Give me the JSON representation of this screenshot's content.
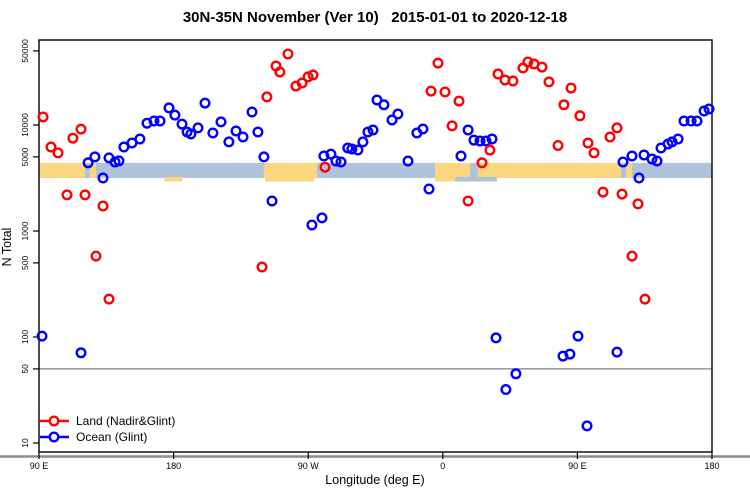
{
  "chart_data": {
    "type": "scatter",
    "title": "30N-35N November (Ver 10)   2015-01-01 to 2020-12-18",
    "xlabel": "Longitude (deg E)",
    "ylabel": "N Total",
    "x_axis": {
      "range": [
        0,
        450
      ],
      "unit_note": "degrees eastward from 90E; axis labels wrap around the globe",
      "ticks": [
        {
          "pos": 0,
          "label": "90 E"
        },
        {
          "pos": 90,
          "label": "180"
        },
        {
          "pos": 180,
          "label": "90 W"
        },
        {
          "pos": 270,
          "label": "0"
        },
        {
          "pos": 360,
          "label": "90 E"
        },
        {
          "pos": 450,
          "label": "180"
        }
      ]
    },
    "y_axis": {
      "scale": "log10",
      "range": [
        7.7,
        63000
      ],
      "ticks": [
        {
          "value": 50000,
          "label": "50000"
        },
        {
          "value": 10000,
          "label": "10000"
        },
        {
          "value": 5000,
          "label": "5000"
        },
        {
          "value": 1000,
          "label": "1000"
        },
        {
          "value": 500,
          "label": "500"
        },
        {
          "value": 100,
          "label": "100"
        },
        {
          "value": 50,
          "label": "50"
        },
        {
          "value": 10,
          "label": "10"
        }
      ]
    },
    "reference_line": {
      "value": 50,
      "color": "#808080"
    },
    "baseline_rule_color": "#8c8c8c",
    "surface_band": {
      "value_top": 4390,
      "value_bottom": 3160,
      "land_color": "#FAD77E",
      "ocean_color": "#AFC3DC",
      "segments": [
        {
          "from": 0,
          "to": 30.8,
          "type": "land"
        },
        {
          "from": 30.8,
          "to": 34.1,
          "type": "ocean"
        },
        {
          "from": 34.1,
          "to": 38.1,
          "type": "land"
        },
        {
          "from": 38.1,
          "to": 150.4,
          "type": "ocean"
        },
        {
          "from": 150.4,
          "to": 185.9,
          "type": "land"
        },
        {
          "from": 185.9,
          "to": 264.8,
          "type": "ocean"
        },
        {
          "from": 264.8,
          "to": 288.2,
          "type": "land"
        },
        {
          "from": 288.2,
          "to": 293.5,
          "type": "ocean"
        },
        {
          "from": 293.5,
          "to": 389.2,
          "type": "land"
        },
        {
          "from": 389.2,
          "to": 392.5,
          "type": "ocean"
        },
        {
          "from": 392.5,
          "to": 396.5,
          "type": "land"
        },
        {
          "from": 396.5,
          "to": 450,
          "type": "ocean"
        }
      ],
      "fringes": [
        {
          "from": 84,
          "to": 96,
          "type": "land"
        },
        {
          "from": 151,
          "to": 184,
          "type": "land"
        },
        {
          "from": 264.8,
          "to": 278.2,
          "type": "land"
        },
        {
          "from": 278.2,
          "to": 306.2,
          "type": "ocean"
        }
      ]
    },
    "series": [
      {
        "name": "Land (Nadir&Glint)",
        "color": "#FF0000",
        "points": [
          [
            2.7,
            11900
          ],
          [
            8,
            6200
          ],
          [
            12.7,
            5450
          ],
          [
            22.7,
            7500
          ],
          [
            28.1,
            9150
          ],
          [
            18.7,
            2190
          ],
          [
            30.8,
            2190
          ],
          [
            42.8,
            1720
          ],
          [
            38.1,
            580
          ],
          [
            46.8,
            228
          ],
          [
            149.1,
            457
          ],
          [
            152.4,
            18400
          ],
          [
            158.5,
            36000
          ],
          [
            161.1,
            31600
          ],
          [
            166.5,
            46800
          ],
          [
            171.8,
            23300
          ],
          [
            175.9,
            24900
          ],
          [
            179.9,
            28400
          ],
          [
            183.2,
            29600
          ],
          [
            191.2,
            4000
          ],
          [
            262.1,
            20900
          ],
          [
            266.8,
            38400
          ],
          [
            271.5,
            20500
          ],
          [
            280.8,
            16800
          ],
          [
            276.2,
            9800
          ],
          [
            301.5,
            5800
          ],
          [
            296.2,
            4400
          ],
          [
            286.9,
            1920
          ],
          [
            306.9,
            30300
          ],
          [
            311.6,
            26600
          ],
          [
            316.9,
            26000
          ],
          [
            323.6,
            34500
          ],
          [
            326.9,
            39300
          ],
          [
            331,
            37600
          ],
          [
            336.3,
            35200
          ],
          [
            341,
            25500
          ],
          [
            347,
            6400
          ],
          [
            351,
            15500
          ],
          [
            355.7,
            22300
          ],
          [
            361.7,
            12200
          ],
          [
            367.1,
            6760
          ],
          [
            371.1,
            5450
          ],
          [
            377.1,
            2330
          ],
          [
            381.8,
            7710
          ],
          [
            386.5,
            9380
          ],
          [
            389.8,
            2230
          ],
          [
            400.5,
            1800
          ],
          [
            396.5,
            580
          ],
          [
            405.2,
            228
          ]
        ]
      },
      {
        "name": "Ocean (Glint)",
        "color": "#0000FF",
        "points": [
          [
            2,
            102
          ],
          [
            28.1,
            71
          ],
          [
            32.8,
            4400
          ],
          [
            37.4,
            5000
          ],
          [
            42.8,
            3160
          ],
          [
            46.8,
            4890
          ],
          [
            50.8,
            4480
          ],
          [
            53.5,
            4580
          ],
          [
            56.8,
            6200
          ],
          [
            62.2,
            6760
          ],
          [
            67.5,
            7380
          ],
          [
            72.2,
            10400
          ],
          [
            76.9,
            10900
          ],
          [
            80.9,
            10900
          ],
          [
            86.9,
            14500
          ],
          [
            90.9,
            12400
          ],
          [
            95.6,
            10200
          ],
          [
            99,
            8590
          ],
          [
            101.6,
            8220
          ],
          [
            106.3,
            9380
          ],
          [
            111,
            16100
          ],
          [
            116.3,
            8410
          ],
          [
            121.7,
            10700
          ],
          [
            127,
            6920
          ],
          [
            131.7,
            8770
          ],
          [
            136.4,
            7710
          ],
          [
            142.4,
            13270
          ],
          [
            146.4,
            8590
          ],
          [
            150.4,
            5000
          ],
          [
            155.8,
            1920
          ],
          [
            182.5,
            1140
          ],
          [
            189.2,
            1330
          ],
          [
            190.5,
            5100
          ],
          [
            195.2,
            5320
          ],
          [
            198.5,
            4570
          ],
          [
            201.9,
            4480
          ],
          [
            206.5,
            6070
          ],
          [
            209.2,
            5940
          ],
          [
            213.2,
            5810
          ],
          [
            216.6,
            6920
          ],
          [
            219.9,
            8590
          ],
          [
            223.3,
            8970
          ],
          [
            226,
            17200
          ],
          [
            230.6,
            15500
          ],
          [
            240,
            12700
          ],
          [
            236,
            11140
          ],
          [
            252.7,
            8410
          ],
          [
            256.7,
            9160
          ],
          [
            246.7,
            4570
          ],
          [
            260.8,
            2490
          ],
          [
            282.2,
            5100
          ],
          [
            286.9,
            8970
          ],
          [
            290.8,
            7210
          ],
          [
            294.9,
            7060
          ],
          [
            298.9,
            7060
          ],
          [
            302.9,
            7380
          ],
          [
            305.6,
            98
          ],
          [
            312.2,
            32
          ],
          [
            318.9,
            45
          ],
          [
            350.4,
            66
          ],
          [
            355,
            69
          ],
          [
            360.4,
            102
          ],
          [
            366.4,
            14.5
          ],
          [
            386.5,
            72
          ],
          [
            390.5,
            4480
          ],
          [
            396.5,
            5100
          ],
          [
            401.2,
            3160
          ],
          [
            404.5,
            5210
          ],
          [
            409.9,
            4780
          ],
          [
            413.2,
            4570
          ],
          [
            415.9,
            6070
          ],
          [
            420.6,
            6620
          ],
          [
            423.3,
            6920
          ],
          [
            427.3,
            7380
          ],
          [
            431.3,
            10900
          ],
          [
            436,
            10900
          ],
          [
            440,
            10900
          ],
          [
            444.7,
            13550
          ],
          [
            448,
            14160
          ]
        ]
      }
    ],
    "legend": {
      "position": "bottom-left",
      "entries": [
        "Land (Nadir&Glint)",
        "Ocean (Glint)"
      ]
    }
  }
}
